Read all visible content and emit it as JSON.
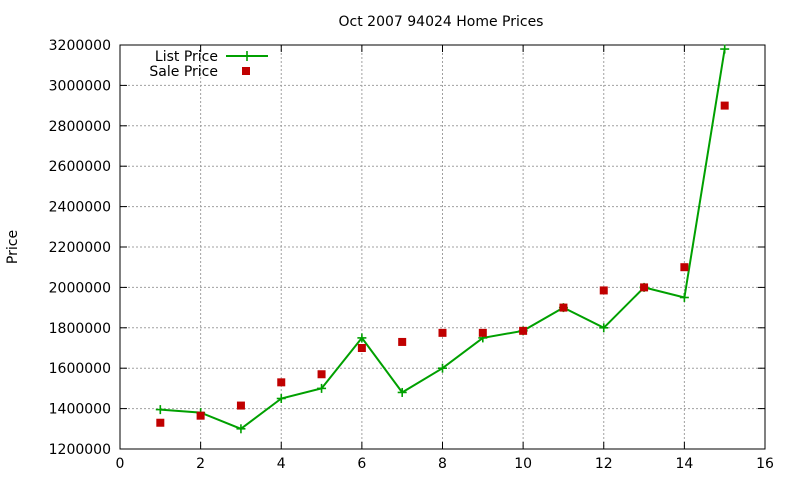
{
  "chart_data": {
    "type": "line",
    "title": "Oct 2007 94024 Home Prices",
    "xlabel": "",
    "ylabel": "Price",
    "xlim": [
      0,
      16
    ],
    "ylim": [
      1200000,
      3200000
    ],
    "x_ticks": [
      0,
      2,
      4,
      6,
      8,
      10,
      12,
      14,
      16
    ],
    "y_ticks": [
      1200000,
      1400000,
      1600000,
      1800000,
      2000000,
      2200000,
      2400000,
      2600000,
      2800000,
      3000000,
      3200000
    ],
    "grid": true,
    "legend_position": "top-left",
    "series": [
      {
        "name": "List Price",
        "style": "line-with-plus-markers",
        "color": "#00a000",
        "x": [
          1,
          2,
          3,
          4,
          5,
          6,
          7,
          8,
          9,
          10,
          11,
          12,
          13,
          14,
          15
        ],
        "values": [
          1395000,
          1380000,
          1300000,
          1450000,
          1500000,
          1750000,
          1480000,
          1600000,
          1750000,
          1785000,
          1900000,
          1800000,
          2000000,
          1950000,
          3180000
        ]
      },
      {
        "name": "Sale Price",
        "style": "square-markers",
        "color": "#c00000",
        "x": [
          1,
          2,
          3,
          4,
          5,
          6,
          7,
          8,
          9,
          10,
          11,
          12,
          13,
          14,
          15
        ],
        "values": [
          1330000,
          1365000,
          1415000,
          1530000,
          1570000,
          1700000,
          1730000,
          1775000,
          1775000,
          1785000,
          1900000,
          1985000,
          2000000,
          2100000,
          2900000
        ]
      }
    ]
  }
}
